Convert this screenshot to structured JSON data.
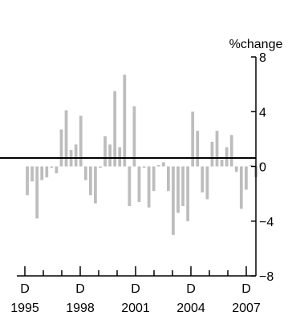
{
  "chart_data": {
    "type": "bar",
    "title": "",
    "xlabel": "",
    "ylabel": "%change",
    "ylim": [
      -8,
      8
    ],
    "yticks": [
      8,
      4,
      0,
      -4,
      -8
    ],
    "ytick_labels": [
      "8",
      "4",
      "0",
      "−4",
      "−8"
    ],
    "xtick_month_labels": [
      "D",
      "D",
      "D",
      "D",
      "D"
    ],
    "xtick_year_labels": [
      "1995",
      "1998",
      "2001",
      "2004",
      "2007"
    ],
    "grid": false,
    "bar_color": "#bdbdbd",
    "series": [
      {
        "values": [
          -2.1,
          -1.1,
          -3.8,
          -1.0,
          -0.8,
          -0.1,
          -0.5,
          2.7,
          4.1,
          1.2,
          1.6,
          3.7,
          -1.0,
          -2.1,
          -2.7,
          -0.1,
          2.2,
          1.6,
          5.5,
          1.4,
          6.7,
          -2.9,
          4.4,
          -2.6,
          -0.1,
          -3.0,
          -1.8,
          0.1,
          0.3,
          -1.8,
          -5.0,
          -3.4,
          -2.9,
          -4.0,
          4.0,
          2.6,
          -1.9,
          -2.4,
          1.8,
          2.6,
          0.5,
          1.4,
          2.3,
          -0.4,
          -3.1,
          -1.7,
          0.1,
          -0.8,
          0.2
        ]
      }
    ]
  }
}
